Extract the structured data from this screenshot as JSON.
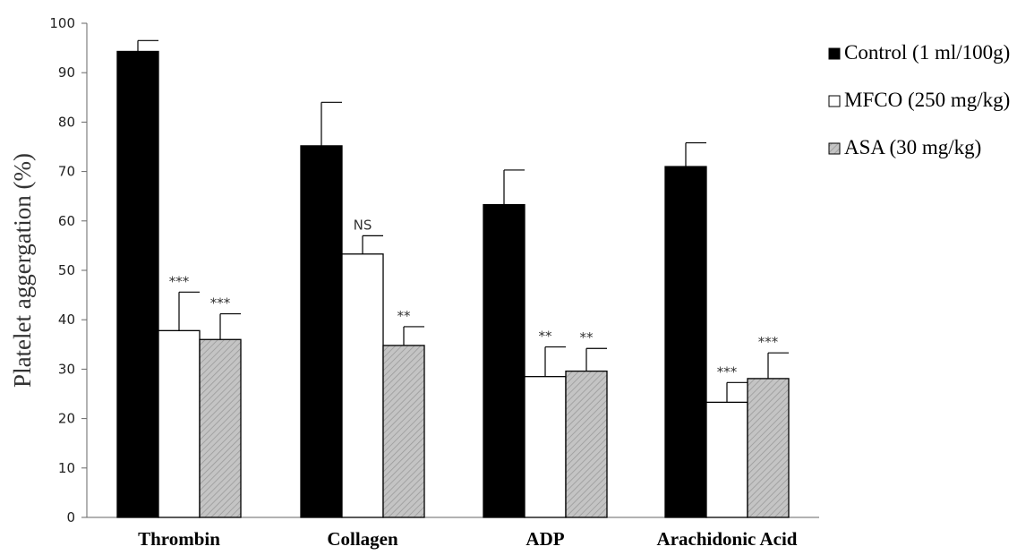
{
  "chart_data": {
    "type": "bar",
    "title": "",
    "xlabel": "",
    "ylabel": "Platelet aggergation (%)",
    "ylim": [
      0,
      100
    ],
    "yticks": [
      0,
      10,
      20,
      30,
      40,
      50,
      60,
      70,
      80,
      90,
      100
    ],
    "categories": [
      "Thrombin",
      "Collagen",
      "ADP",
      "Arachidonic Acid"
    ],
    "legend_position": "right",
    "grid": false,
    "series": [
      {
        "name": "Control (1 ml/100g)",
        "fill": "black",
        "values": [
          94.3,
          75.2,
          63.3,
          71.0
        ],
        "errors": [
          2.2,
          8.8,
          7.0,
          4.8
        ],
        "annotations": [
          "",
          "",
          "",
          ""
        ]
      },
      {
        "name": "MFCO (250 mg/kg)",
        "fill": "white",
        "values": [
          37.8,
          53.3,
          28.5,
          23.3
        ],
        "errors": [
          7.8,
          3.7,
          6.0,
          4.0
        ],
        "annotations": [
          "***",
          "NS",
          "**",
          "***"
        ]
      },
      {
        "name": "ASA (30 mg/kg)",
        "fill": "hatched-gray",
        "values": [
          36.0,
          34.8,
          29.6,
          28.1
        ],
        "errors": [
          5.2,
          3.8,
          4.6,
          5.2
        ],
        "annotations": [
          "***",
          "**",
          "**",
          "***"
        ]
      }
    ]
  }
}
